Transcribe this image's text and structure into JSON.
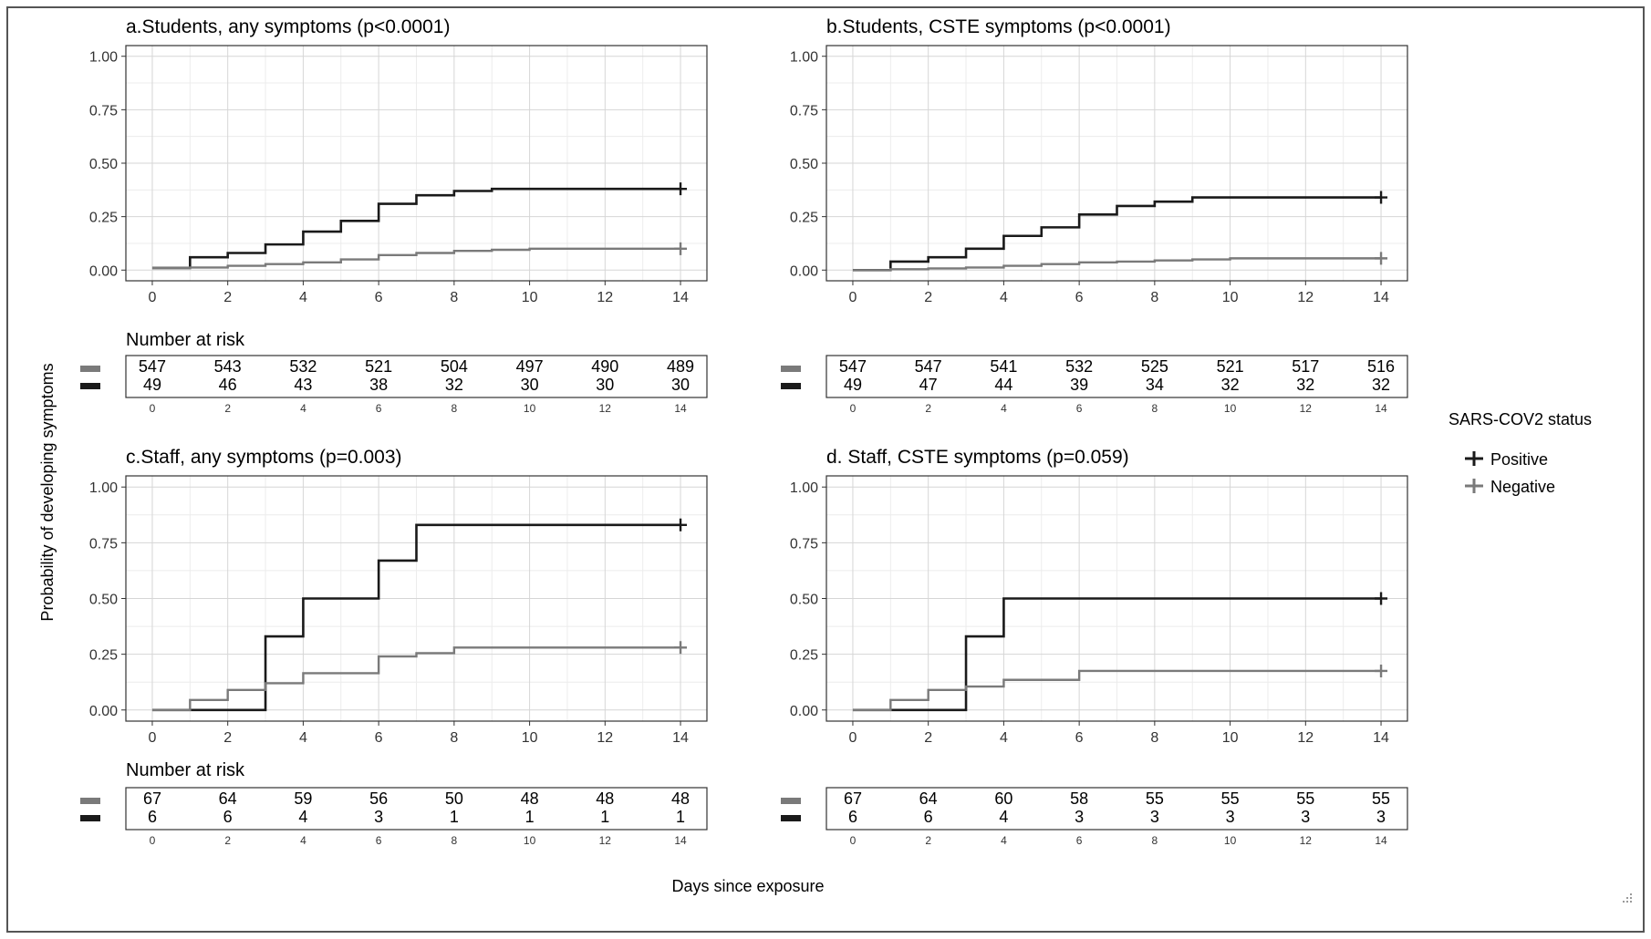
{
  "figure": {
    "ylabel": "Probability of developing symptoms",
    "xlabel": "Days since exposure",
    "risk_title": "Number at risk",
    "legend": {
      "title": "SARS-COV2 status",
      "items": [
        {
          "label": "Positive",
          "color": "#1a1a1a"
        },
        {
          "label": "Negative",
          "color": "#7a7a7a"
        }
      ]
    }
  },
  "chart_data": [
    {
      "type": "line",
      "step": true,
      "title": "a.Students, any symptoms (p<0.0001)",
      "xlim": [
        0,
        14
      ],
      "ylim": [
        0,
        1
      ],
      "x_ticks": [
        0,
        2,
        4,
        6,
        8,
        10,
        12,
        14
      ],
      "y_ticks": [
        "0.00",
        "0.25",
        "0.50",
        "0.75",
        "1.00"
      ],
      "grid": true,
      "series": [
        {
          "name": "Positive",
          "color": "#1a1a1a",
          "x": [
            0,
            1,
            2,
            3,
            4,
            5,
            6,
            7,
            8,
            9,
            14
          ],
          "y": [
            0.01,
            0.06,
            0.08,
            0.12,
            0.18,
            0.23,
            0.31,
            0.35,
            0.37,
            0.38,
            0.38
          ]
        },
        {
          "name": "Negative",
          "color": "#7a7a7a",
          "x": [
            0,
            1,
            2,
            3,
            4,
            5,
            6,
            7,
            8,
            9,
            10,
            14
          ],
          "y": [
            0.01,
            0.012,
            0.02,
            0.028,
            0.036,
            0.05,
            0.07,
            0.08,
            0.09,
            0.095,
            0.1,
            0.1
          ]
        }
      ],
      "risk_table": {
        "negative": [
          547,
          543,
          532,
          521,
          504,
          497,
          490,
          489
        ],
        "positive": [
          49,
          46,
          43,
          38,
          32,
          30,
          30,
          30
        ]
      }
    },
    {
      "type": "line",
      "step": true,
      "title": "b.Students, CSTE symptoms (p<0.0001)",
      "xlim": [
        0,
        14
      ],
      "ylim": [
        0,
        1
      ],
      "x_ticks": [
        0,
        2,
        4,
        6,
        8,
        10,
        12,
        14
      ],
      "y_ticks": [
        "0.00",
        "0.25",
        "0.50",
        "0.75",
        "1.00"
      ],
      "grid": true,
      "series": [
        {
          "name": "Positive",
          "color": "#1a1a1a",
          "x": [
            0,
            1,
            2,
            3,
            4,
            5,
            6,
            7,
            8,
            9,
            14
          ],
          "y": [
            0.0,
            0.04,
            0.06,
            0.1,
            0.16,
            0.2,
            0.26,
            0.3,
            0.32,
            0.34,
            0.34
          ]
        },
        {
          "name": "Negative",
          "color": "#7a7a7a",
          "x": [
            0,
            1,
            2,
            3,
            4,
            5,
            6,
            7,
            8,
            9,
            10,
            14
          ],
          "y": [
            0.0,
            0.004,
            0.008,
            0.012,
            0.02,
            0.028,
            0.036,
            0.04,
            0.045,
            0.05,
            0.055,
            0.055
          ]
        }
      ],
      "risk_table": {
        "negative": [
          547,
          547,
          541,
          532,
          525,
          521,
          517,
          516
        ],
        "positive": [
          49,
          47,
          44,
          39,
          34,
          32,
          32,
          32
        ]
      }
    },
    {
      "type": "line",
      "step": true,
      "title": "c.Staff, any symptoms (p=0.003)",
      "xlim": [
        0,
        14
      ],
      "ylim": [
        0,
        1
      ],
      "x_ticks": [
        0,
        2,
        4,
        6,
        8,
        10,
        12,
        14
      ],
      "y_ticks": [
        "0.00",
        "0.25",
        "0.50",
        "0.75",
        "1.00"
      ],
      "grid": true,
      "series": [
        {
          "name": "Positive",
          "color": "#1a1a1a",
          "x": [
            0,
            3,
            4,
            6,
            7,
            14
          ],
          "y": [
            0.0,
            0.33,
            0.5,
            0.67,
            0.83,
            0.83
          ]
        },
        {
          "name": "Negative",
          "color": "#7a7a7a",
          "x": [
            0,
            1,
            2,
            3,
            4,
            6,
            7,
            8,
            14
          ],
          "y": [
            0.0,
            0.045,
            0.09,
            0.12,
            0.165,
            0.24,
            0.255,
            0.28,
            0.28
          ]
        }
      ],
      "risk_table": {
        "negative": [
          67,
          64,
          59,
          56,
          50,
          48,
          48,
          48
        ],
        "positive": [
          6,
          6,
          4,
          3,
          1,
          1,
          1,
          1
        ]
      }
    },
    {
      "type": "line",
      "step": true,
      "title": "d. Staff, CSTE symptoms (p=0.059)",
      "xlim": [
        0,
        14
      ],
      "ylim": [
        0,
        1
      ],
      "x_ticks": [
        0,
        2,
        4,
        6,
        8,
        10,
        12,
        14
      ],
      "y_ticks": [
        "0.00",
        "0.25",
        "0.50",
        "0.75",
        "1.00"
      ],
      "grid": true,
      "series": [
        {
          "name": "Positive",
          "color": "#1a1a1a",
          "x": [
            0,
            3,
            4,
            14
          ],
          "y": [
            0.0,
            0.33,
            0.5,
            0.5
          ]
        },
        {
          "name": "Negative",
          "color": "#7a7a7a",
          "x": [
            0,
            1,
            2,
            3,
            4,
            6,
            14
          ],
          "y": [
            0.0,
            0.045,
            0.09,
            0.105,
            0.135,
            0.175,
            0.175
          ]
        }
      ],
      "risk_table": {
        "negative": [
          67,
          64,
          60,
          58,
          55,
          55,
          55,
          55
        ],
        "positive": [
          6,
          6,
          4,
          3,
          3,
          3,
          3,
          3
        ]
      }
    }
  ]
}
